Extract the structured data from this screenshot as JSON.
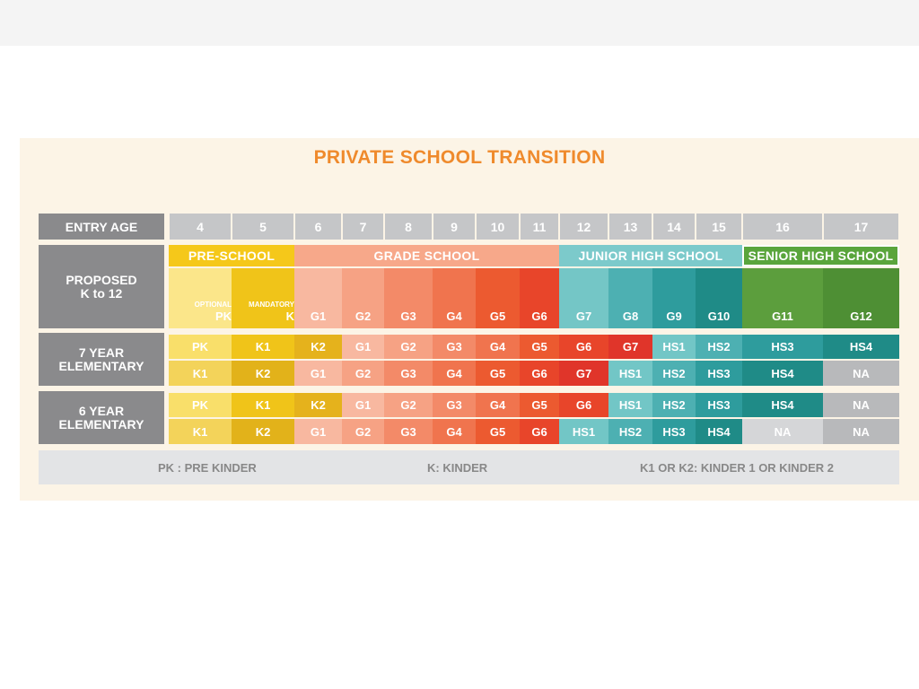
{
  "title": "PRIVATE SCHOOL TRANSITION",
  "row_labels": {
    "entry_age": "ENTRY AGE",
    "proposed": [
      "PROPOSED",
      "K to 12"
    ],
    "seven_year": [
      "7 YEAR",
      "ELEMENTARY"
    ],
    "six_year": [
      "6 YEAR",
      "ELEMENTARY"
    ]
  },
  "ages": [
    "4",
    "5",
    "6",
    "7",
    "8",
    "9",
    "10",
    "11",
    "12",
    "13",
    "14",
    "15",
    "16",
    "17"
  ],
  "bands": [
    "PRE-SCHOOL",
    "GRADE SCHOOL",
    "JUNIOR HIGH SCHOOL",
    "SENIOR HIGH SCHOOL"
  ],
  "proposed_sub": [
    "OPTIONAL",
    "MANDATORY"
  ],
  "proposed": [
    "PK",
    "K",
    "G1",
    "G2",
    "G3",
    "G4",
    "G5",
    "G6",
    "G7",
    "G8",
    "G9",
    "G10",
    "G11",
    "G12"
  ],
  "seven_year_row1": [
    "PK",
    "K1",
    "K2",
    "G1",
    "G2",
    "G3",
    "G4",
    "G5",
    "G6",
    "G7",
    "HS1",
    "HS2",
    "HS3",
    "HS4"
  ],
  "seven_year_row2": [
    "K1",
    "K2",
    "G1",
    "G2",
    "G3",
    "G4",
    "G5",
    "G6",
    "G7",
    "HS1",
    "HS2",
    "HS3",
    "HS4",
    "NA"
  ],
  "six_year_row1": [
    "PK",
    "K1",
    "K2",
    "G1",
    "G2",
    "G3",
    "G4",
    "G5",
    "G6",
    "HS1",
    "HS2",
    "HS3",
    "HS4",
    "NA"
  ],
  "six_year_row2": [
    "K1",
    "K2",
    "G1",
    "G2",
    "G3",
    "G4",
    "G5",
    "G6",
    "HS1",
    "HS2",
    "HS3",
    "HS4",
    "NA",
    "NA"
  ],
  "legend": [
    "PK : PRE KINDER",
    "K: KINDER",
    "K1 OR K2: KINDER 1 OR KINDER 2"
  ],
  "colors": {
    "label_gray": "#8a8a8c",
    "age_gray": "#c5c6c8",
    "title_orange": "#ef8a2c",
    "panel_bg": "#fcf4e6"
  }
}
